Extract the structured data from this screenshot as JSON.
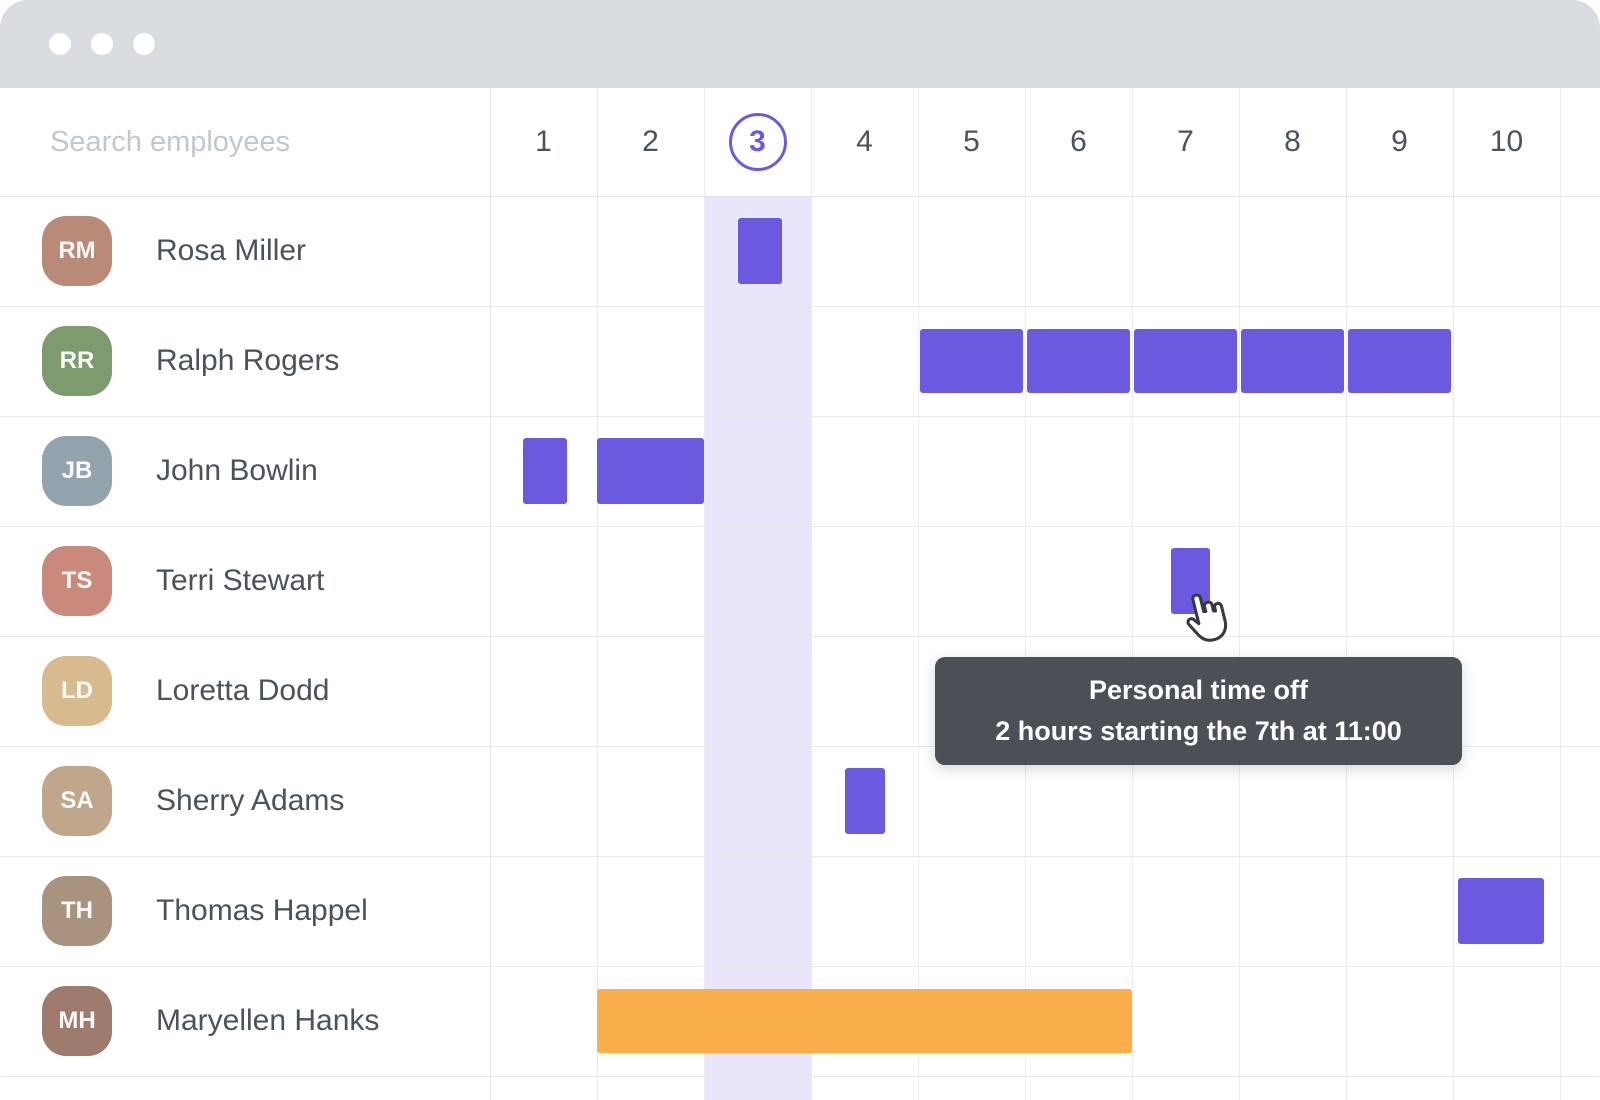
{
  "search": {
    "placeholder": "Search employees"
  },
  "calendar": {
    "days": [
      "1",
      "2",
      "3",
      "4",
      "5",
      "6",
      "7",
      "8",
      "9",
      "10"
    ],
    "selected_day": "3"
  },
  "employees": [
    {
      "name": "Rosa Miller",
      "avatar_color": "#B98A77"
    },
    {
      "name": "Ralph Rogers",
      "avatar_color": "#7E9B6E"
    },
    {
      "name": "John Bowlin",
      "avatar_color": "#93A3AE"
    },
    {
      "name": "Terri Stewart",
      "avatar_color": "#C9897B"
    },
    {
      "name": "Loretta Dodd",
      "avatar_color": "#D7BA8E"
    },
    {
      "name": "Sherry Adams",
      "avatar_color": "#C0A78B"
    },
    {
      "name": "Thomas Happel",
      "avatar_color": "#A8937E"
    },
    {
      "name": "Maryellen Hanks",
      "avatar_color": "#9E7B6C"
    }
  ],
  "schedule": {
    "bars": [
      {
        "employee": "Rosa Miller",
        "row": 0,
        "start": 2.32,
        "end": 2.73,
        "color": "purple",
        "segmented": false
      },
      {
        "employee": "Ralph Rogers",
        "row": 1,
        "start": 4,
        "end": 9,
        "color": "purple",
        "segmented": true
      },
      {
        "employee": "John Bowlin",
        "row": 2,
        "start": 0.31,
        "end": 0.72,
        "color": "purple",
        "segmented": false
      },
      {
        "employee": "John Bowlin",
        "row": 2,
        "start": 1.0,
        "end": 2.0,
        "color": "purple",
        "segmented": false
      },
      {
        "employee": "Terri Stewart",
        "row": 3,
        "start": 6.36,
        "end": 6.73,
        "color": "purple",
        "segmented": false
      },
      {
        "employee": "Sherry Adams",
        "row": 5,
        "start": 3.32,
        "end": 3.69,
        "color": "purple",
        "segmented": false
      },
      {
        "employee": "Thomas Happel",
        "row": 6,
        "start": 9.05,
        "end": 9.85,
        "color": "purple",
        "segmented": false
      },
      {
        "employee": "Maryellen Hanks",
        "row": 7,
        "start": 1.0,
        "end": 6.0,
        "color": "orange",
        "segmented": false
      }
    ]
  },
  "tooltip": {
    "line1": "Personal time off",
    "line2": "2 hours starting the 7th at 11:00"
  },
  "colors": {
    "accent": "#6B5AE0",
    "orange": "#F9AE4B",
    "tooltip_bg": "#4A5056",
    "column_highlight": "#E9E5FB"
  }
}
